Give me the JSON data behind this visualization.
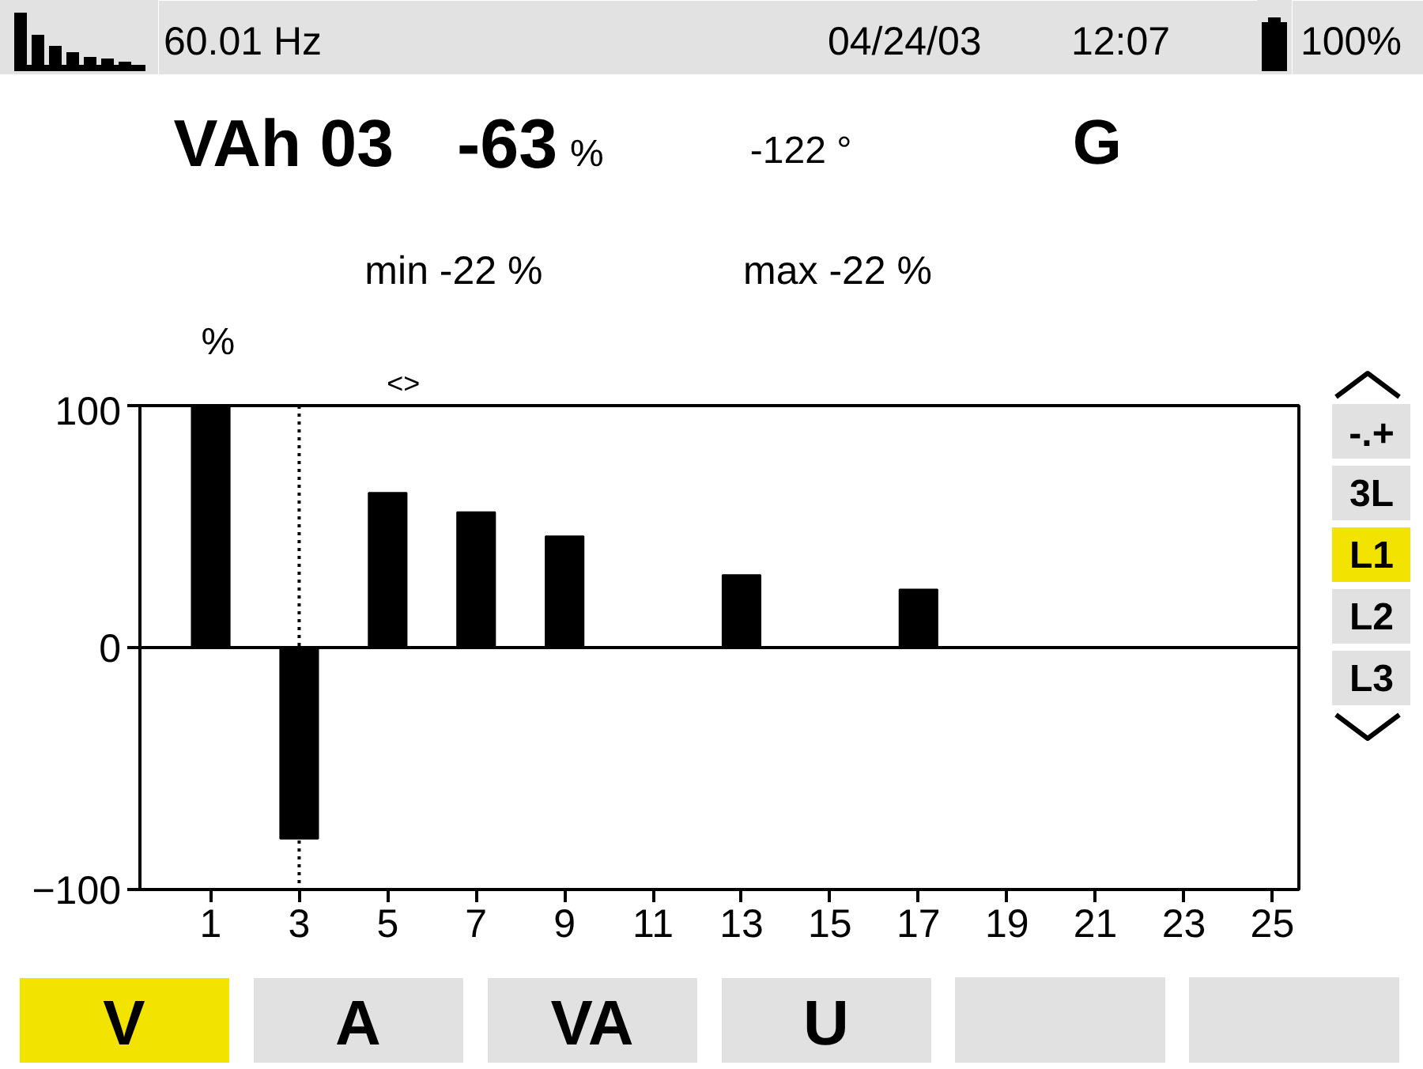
{
  "chart_data": {
    "type": "bar",
    "x": [
      1,
      3,
      5,
      7,
      9,
      13,
      17
    ],
    "values": [
      100,
      -79,
      64,
      56,
      46,
      30,
      24
    ],
    "color": "#000000",
    "xlim": [
      -0.6,
      25.6
    ],
    "xticks": [
      1,
      3,
      5,
      7,
      9,
      11,
      13,
      15,
      17,
      19,
      21,
      23,
      25
    ],
    "ylim": [
      -100,
      100
    ],
    "yticks": [
      -100,
      0,
      100
    ],
    "ylabel": "%",
    "grid": false,
    "ref_lines": [
      {
        "axis": "y",
        "value": 0
      },
      {
        "axis": "x",
        "value": 3,
        "label": "<>",
        "line_style": "dotted"
      }
    ],
    "annotations": [
      "60.01 Hz",
      "04/24/03",
      "12:07",
      "100%",
      "VAh 03",
      "-63",
      "%",
      "-122 °",
      "G",
      "min -22 %",
      "max -22 %",
      "-.+",
      "3L",
      "L1",
      "L2",
      "L3",
      "V",
      "A",
      "VA",
      "U"
    ]
  }
}
